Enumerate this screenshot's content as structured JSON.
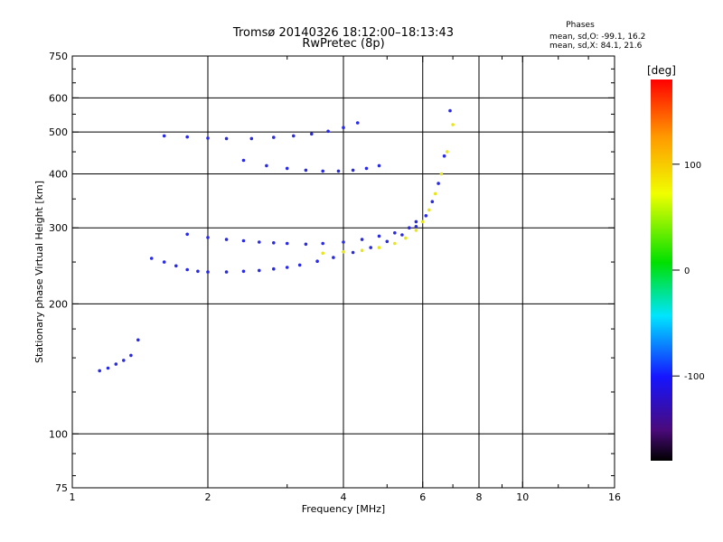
{
  "title": "Tromsø 20140326 18:12:00–18:13:43",
  "subtitle": "RwPretec (8p)",
  "stats": {
    "heading": "Phases",
    "line_o": "mean, sd,O:  -99.1, 16.2",
    "line_x": "mean, sd,X:  84.1, 21.6"
  },
  "colorbar": {
    "label": "[deg]",
    "ticks": [
      "100",
      "0",
      "-100"
    ],
    "tick_values": [
      100,
      0,
      -100
    ],
    "range": [
      -180,
      180
    ]
  },
  "colors": {
    "o_mode": "#2a2ae6",
    "x_mode": "#e6e61a"
  },
  "chart_data": {
    "type": "scatter",
    "title": "Tromsø 20140326 18:12:00–18:13:43",
    "subtitle": "RwPretec (8p)",
    "xlabel": "Frequency [MHz]",
    "ylabel": "Stationary phase Virtual Height [km]",
    "xscale": "log",
    "yscale": "log",
    "xlim": [
      1,
      16
    ],
    "ylim": [
      75,
      750
    ],
    "grid": true,
    "xticks": [
      1,
      2,
      4,
      6,
      8,
      10,
      16
    ],
    "xtick_labels": [
      "1",
      "2",
      "4",
      "6",
      "8",
      "10",
      "16"
    ],
    "yticks": [
      75,
      100,
      200,
      300,
      400,
      500,
      600,
      750
    ],
    "ytick_labels": [
      "75",
      "100",
      "200",
      "300",
      "400",
      "500",
      "600",
      "750"
    ],
    "x_gridlines": [
      2,
      4,
      6,
      8,
      10
    ],
    "y_gridlines": [
      100,
      200,
      300,
      400,
      500,
      600
    ],
    "series": [
      {
        "mode": "O",
        "phase_deg": -99.1,
        "x": [
          1.15,
          1.2,
          1.25,
          1.3,
          1.35,
          1.4,
          1.5,
          1.6,
          1.7,
          1.8,
          1.9,
          2.0,
          2.2,
          2.4,
          2.6,
          2.8,
          3.0,
          3.2,
          3.5,
          3.8,
          4.2,
          4.6,
          5.0,
          5.4,
          5.8,
          6.1,
          6.3,
          6.5,
          6.7,
          6.9
        ],
        "y": [
          140,
          142,
          145,
          148,
          152,
          165,
          255,
          250,
          245,
          240,
          238,
          237,
          237,
          238,
          239,
          241,
          243,
          246,
          251,
          256,
          263,
          270,
          279,
          289,
          302,
          320,
          345,
          380,
          440,
          560
        ]
      },
      {
        "mode": "O",
        "phase_deg": -99.1,
        "x": [
          1.8,
          2.0,
          2.2,
          2.4,
          2.6,
          2.8,
          3.0,
          3.3,
          3.6,
          4.0,
          4.4,
          4.8,
          5.2,
          5.6,
          5.8
        ],
        "y": [
          290,
          285,
          282,
          280,
          278,
          277,
          276,
          275,
          276,
          278,
          282,
          287,
          292,
          300,
          310
        ]
      },
      {
        "mode": "O",
        "phase_deg": -99.1,
        "x": [
          1.6,
          1.8,
          2.0,
          2.2,
          2.5,
          2.8,
          3.1,
          3.4,
          3.7,
          4.0,
          4.3
        ],
        "y": [
          490,
          487,
          484,
          483,
          483,
          486,
          490,
          495,
          502,
          512,
          525
        ]
      },
      {
        "mode": "O",
        "phase_deg": -99.1,
        "x": [
          2.4,
          2.7,
          3.0,
          3.3,
          3.6,
          3.9,
          4.2,
          4.5,
          4.8
        ],
        "y": [
          430,
          418,
          412,
          408,
          406,
          406,
          408,
          412,
          418
        ]
      },
      {
        "mode": "X",
        "phase_deg": 84.1,
        "x": [
          3.6,
          4.0,
          4.4,
          4.8,
          5.2,
          5.5,
          5.8,
          6.0,
          6.2,
          6.4,
          6.6,
          6.8,
          7.0
        ],
        "y": [
          262,
          264,
          266,
          270,
          276,
          284,
          296,
          310,
          330,
          360,
          400,
          450,
          520
        ]
      }
    ]
  }
}
